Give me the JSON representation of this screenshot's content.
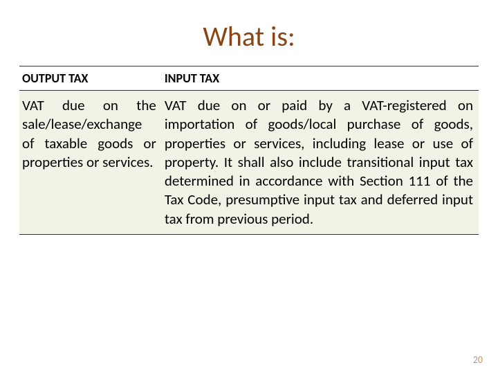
{
  "title": "What is:",
  "title_color": "#8b4513",
  "columns": {
    "left_header": "OUTPUT TAX",
    "right_header": "INPUT TAX"
  },
  "cells": {
    "left_body": "VAT due on the sale/lease/exchange of taxable goods or properties or services.",
    "right_body": "VAT due on or paid by a VAT-registered on importation of goods/local purchase of goods, properties or services, including lease or use of property. It shall also include transitional input tax determined in accordance with Section 111 of the Tax Code, presumptive input tax and deferred input tax from previous period."
  },
  "row_bg": "#f2f2e6",
  "page_number": "20",
  "page_number_color": "#c19a6b"
}
